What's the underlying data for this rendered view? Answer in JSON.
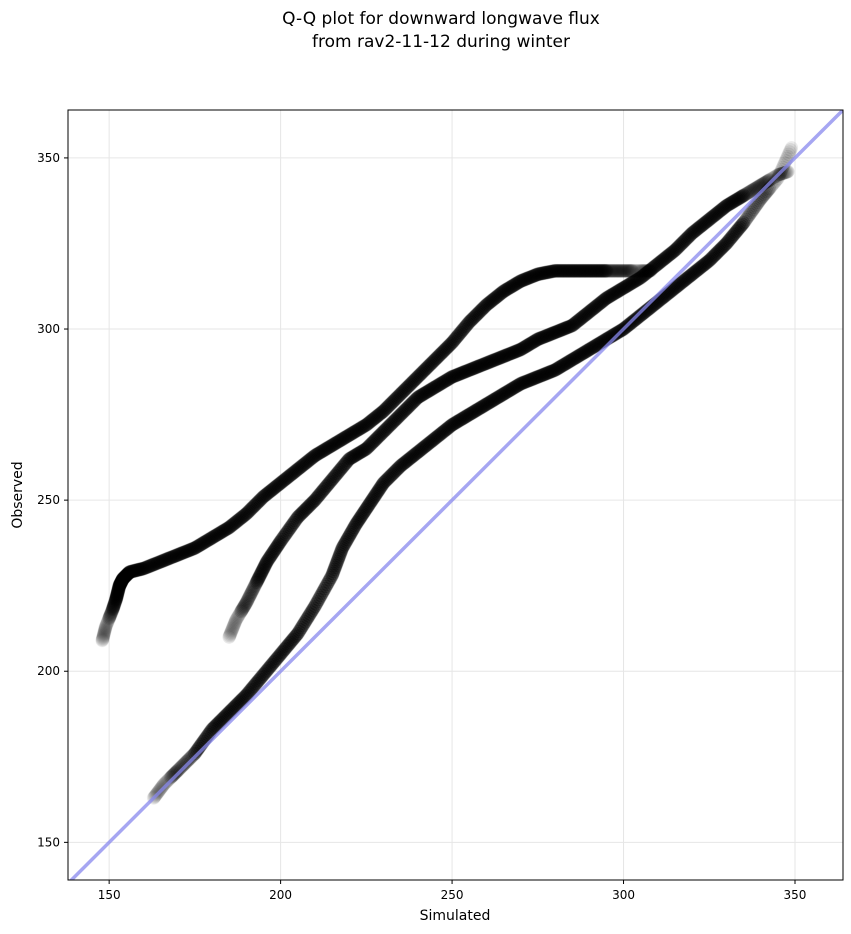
{
  "chart_data": {
    "type": "scatter",
    "title_lines": [
      "Q-Q plot for downward longwave flux",
      "from rav2-11-12 during winter"
    ],
    "xlabel": "Simulated",
    "ylabel": "Observed",
    "xlim": [
      138,
      364
    ],
    "ylim": [
      139,
      364
    ],
    "xticks": [
      150,
      200,
      250,
      300,
      350
    ],
    "yticks": [
      150,
      200,
      250,
      300,
      350
    ],
    "grid": true,
    "reference_line": {
      "color": "#8888ee",
      "description": "1:1 line"
    },
    "marker_color": "#000000",
    "series": [
      {
        "points": [
          [
            148,
            209
          ],
          [
            149,
            213
          ],
          [
            151,
            218
          ],
          [
            152,
            221
          ],
          [
            153,
            225
          ],
          [
            154,
            227
          ],
          [
            156,
            229
          ],
          [
            160,
            230
          ],
          [
            165,
            232
          ],
          [
            170,
            234
          ],
          [
            175,
            236
          ],
          [
            180,
            239
          ],
          [
            185,
            242
          ],
          [
            190,
            246
          ],
          [
            195,
            251
          ],
          [
            200,
            255
          ],
          [
            205,
            259
          ],
          [
            210,
            263
          ],
          [
            215,
            266
          ],
          [
            220,
            269
          ],
          [
            225,
            272
          ],
          [
            230,
            276
          ],
          [
            235,
            281
          ],
          [
            240,
            286
          ],
          [
            245,
            291
          ],
          [
            250,
            296
          ],
          [
            255,
            302
          ],
          [
            260,
            307
          ],
          [
            265,
            311
          ],
          [
            270,
            314
          ],
          [
            275,
            316
          ],
          [
            280,
            317
          ],
          [
            285,
            317
          ],
          [
            290,
            317
          ],
          [
            295,
            317
          ],
          [
            300,
            317
          ],
          [
            305,
            317
          ],
          [
            308,
            317
          ]
        ]
      },
      {
        "points": [
          [
            185,
            210
          ],
          [
            187,
            215
          ],
          [
            190,
            220
          ],
          [
            193,
            226
          ],
          [
            196,
            232
          ],
          [
            200,
            238
          ],
          [
            205,
            245
          ],
          [
            210,
            250
          ],
          [
            215,
            256
          ],
          [
            220,
            262
          ],
          [
            225,
            265
          ],
          [
            230,
            270
          ],
          [
            235,
            275
          ],
          [
            240,
            280
          ],
          [
            245,
            283
          ],
          [
            250,
            286
          ],
          [
            255,
            288
          ],
          [
            260,
            290
          ],
          [
            265,
            292
          ],
          [
            270,
            294
          ],
          [
            275,
            297
          ],
          [
            280,
            299
          ],
          [
            285,
            301
          ],
          [
            290,
            305
          ],
          [
            295,
            309
          ],
          [
            300,
            312
          ],
          [
            305,
            315
          ],
          [
            310,
            319
          ],
          [
            315,
            323
          ],
          [
            320,
            328
          ],
          [
            325,
            332
          ],
          [
            330,
            336
          ],
          [
            335,
            339
          ],
          [
            340,
            342
          ],
          [
            345,
            345
          ],
          [
            348,
            346
          ]
        ]
      },
      {
        "points": [
          [
            163,
            163
          ],
          [
            166,
            167
          ],
          [
            170,
            171
          ],
          [
            175,
            176
          ],
          [
            180,
            183
          ],
          [
            185,
            188
          ],
          [
            190,
            193
          ],
          [
            195,
            199
          ],
          [
            200,
            205
          ],
          [
            205,
            211
          ],
          [
            210,
            219
          ],
          [
            215,
            228
          ],
          [
            218,
            236
          ],
          [
            222,
            243
          ],
          [
            226,
            249
          ],
          [
            230,
            255
          ],
          [
            235,
            260
          ],
          [
            240,
            264
          ],
          [
            245,
            268
          ],
          [
            250,
            272
          ],
          [
            255,
            275
          ],
          [
            260,
            278
          ],
          [
            265,
            281
          ],
          [
            270,
            284
          ],
          [
            275,
            286
          ],
          [
            280,
            288
          ],
          [
            285,
            291
          ],
          [
            290,
            294
          ],
          [
            295,
            297
          ],
          [
            300,
            300
          ],
          [
            305,
            304
          ],
          [
            310,
            308
          ],
          [
            315,
            312
          ],
          [
            320,
            316
          ],
          [
            325,
            320
          ],
          [
            330,
            325
          ],
          [
            335,
            331
          ],
          [
            340,
            338
          ],
          [
            345,
            344
          ],
          [
            349,
            353
          ]
        ]
      }
    ]
  }
}
